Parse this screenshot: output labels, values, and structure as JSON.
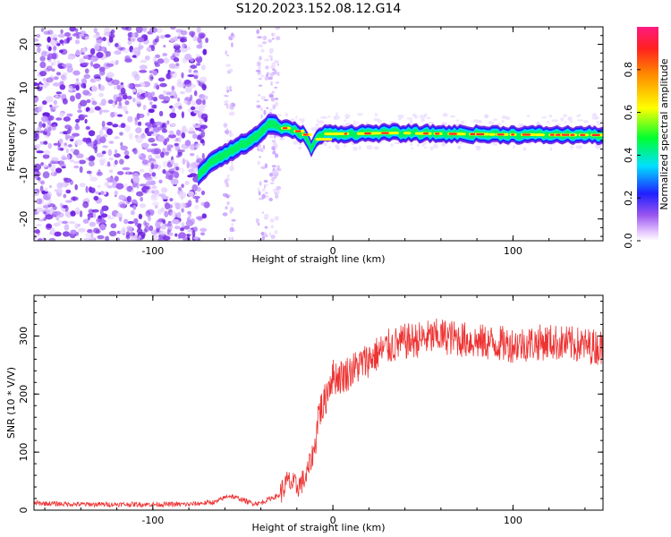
{
  "title": "S120.2023.152.08.12.G14",
  "colors": {
    "snr_line": "#ee3333",
    "scatter_purple": "#7a2ce8",
    "frame": "#000000"
  },
  "chart_data": [
    {
      "type": "heatmap",
      "name": "spectrogram",
      "xlabel": "Height of straight line (km)",
      "ylabel": "Frequency (Hz)",
      "xlim": [
        -166,
        150
      ],
      "ylim": [
        -25,
        24
      ],
      "x_ticks": [
        -100,
        0,
        100
      ],
      "x_tick_labels": [
        "-100",
        "0",
        "100"
      ],
      "y_ticks": [
        -20,
        -10,
        0,
        10,
        20
      ],
      "y_tick_labels": [
        "-20",
        "-10",
        "0",
        "10",
        "20"
      ],
      "grid": false,
      "colorbar": {
        "label": "Normalized spectral amplitude",
        "range": [
          0,
          1
        ],
        "ticks": [
          0.0,
          0.2,
          0.4,
          0.6,
          0.8
        ],
        "tick_labels": [
          "0.0",
          "0.2",
          "0.4",
          "0.6",
          "0.8"
        ],
        "colormap": "rainbow (white-violet-blue-cyan-green-yellow-red-magenta)"
      },
      "ridge": {
        "x": [
          -75,
          -68,
          -60,
          -50,
          -42,
          -35,
          -30,
          -25,
          -20,
          -15,
          -12,
          -8,
          -4,
          0,
          10,
          30,
          60,
          100,
          150
        ],
        "freq": [
          -10,
          -7,
          -5,
          -3,
          -1,
          2,
          1,
          0.5,
          0,
          -1,
          -4,
          -1,
          -0.5,
          -0.5,
          -0.5,
          -0.3,
          -0.5,
          -0.7,
          -0.8
        ],
        "peak_amplitude": 1.0
      },
      "noise_region_x": [
        -166,
        -70
      ]
    },
    {
      "type": "line",
      "name": "snr",
      "xlabel": "Height of straight line (km)",
      "ylabel": "SNR (10 * V/V)",
      "xlim": [
        -166,
        150
      ],
      "ylim": [
        0,
        370
      ],
      "x_ticks": [
        -100,
        0,
        100
      ],
      "x_tick_labels": [
        "-100",
        "0",
        "100"
      ],
      "y_ticks": [
        0,
        100,
        200,
        300
      ],
      "y_tick_labels": [
        "0",
        "100",
        "200",
        "300"
      ],
      "grid": false,
      "series": [
        {
          "x": [
            -166,
            -140,
            -110,
            -80,
            -65,
            -58,
            -52,
            -45,
            -40,
            -35,
            -30,
            -25,
            -20,
            -15,
            -10,
            -8,
            -5,
            -2,
            0,
            5,
            10,
            20,
            30,
            40,
            60,
            80,
            100,
            120,
            150
          ],
          "y": [
            12,
            10,
            10,
            10,
            14,
            25,
            20,
            12,
            12,
            20,
            25,
            50,
            40,
            55,
            110,
            170,
            180,
            220,
            230,
            230,
            240,
            260,
            280,
            290,
            300,
            290,
            285,
            290,
            280
          ]
        }
      ]
    }
  ]
}
